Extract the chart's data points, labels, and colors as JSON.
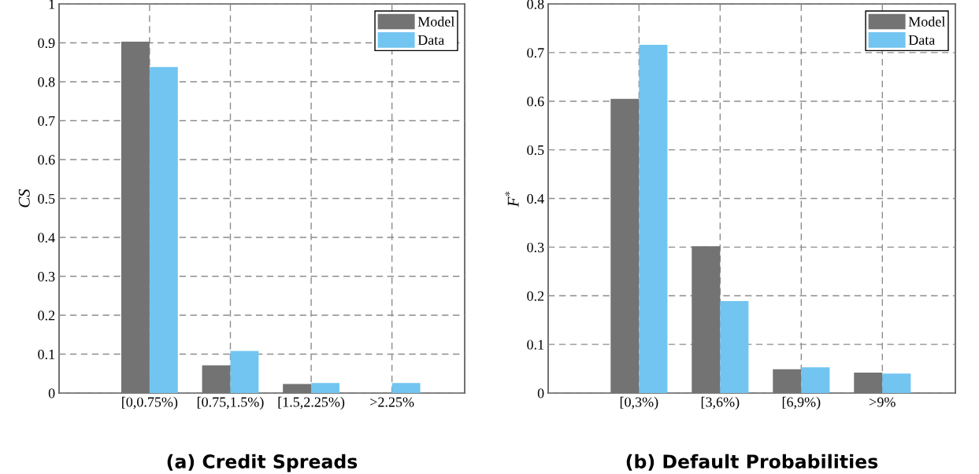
{
  "chart_data": [
    {
      "type": "bar",
      "title": "(a) Credit Spreads",
      "ylabel": "CS",
      "categories": [
        "[0,0.75%)",
        "[0.75,1.5%)",
        "[1.5,2.25%)",
        ">2.25%"
      ],
      "series": [
        {
          "name": "Model",
          "color": "#737373",
          "values": [
            0.903,
            0.071,
            0.023,
            0
          ]
        },
        {
          "name": "Data",
          "color": "#72c5f0",
          "values": [
            0.838,
            0.108,
            0.026,
            0.026
          ]
        }
      ],
      "ylim": [
        0,
        1
      ],
      "yticks": [
        0,
        0.1,
        0.2,
        0.3,
        0.4,
        0.5,
        0.6,
        0.7,
        0.8,
        0.9,
        1
      ],
      "grid": true,
      "legend": "top right"
    },
    {
      "type": "bar",
      "title": "(b) Default Probabilities",
      "ylabel": "F$^{*}$",
      "categories": [
        "[0,3%)",
        "[3,6%)",
        "[6,9%)",
        ">9%"
      ],
      "series": [
        {
          "name": "Model",
          "color": "#737373",
          "values": [
            0.605,
            0.302,
            0.049,
            0.042
          ]
        },
        {
          "name": "Data",
          "color": "#72c5f0",
          "values": [
            0.716,
            0.189,
            0.053,
            0.04
          ]
        }
      ],
      "ylim": [
        0,
        0.8
      ],
      "yticks": [
        0,
        0.1,
        0.2,
        0.3,
        0.4,
        0.5,
        0.6,
        0.7,
        0.8
      ],
      "grid": true,
      "legend": "top right"
    }
  ]
}
